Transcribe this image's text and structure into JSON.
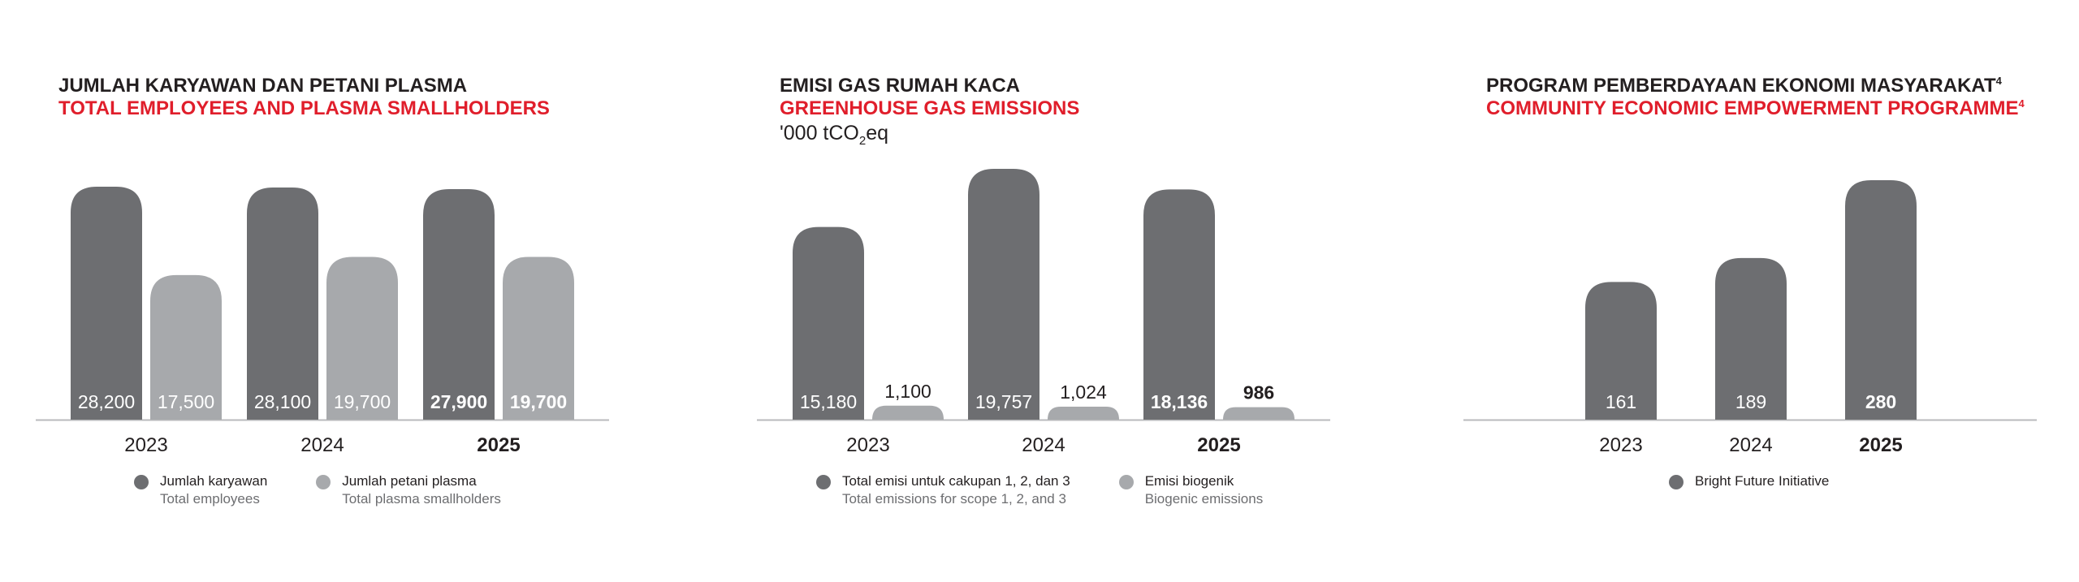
{
  "colors": {
    "primary": "#6d6e71",
    "secondary": "#a7a9ac",
    "accent": "#e01e2b",
    "text": "#231f20",
    "axis": "#b9babc"
  },
  "panels": [
    {
      "title_id": "JUMLAH KARYAWAN DAN PETANI PLASMA",
      "title_en": "TOTAL EMPLOYEES AND PLASMA SMALLHOLDERS",
      "unit": "",
      "legend": [
        {
          "main": "Jumlah karyawan",
          "sub": "Total employees"
        },
        {
          "main": "Jumlah petani plasma",
          "sub": "Total plasma smallholders"
        }
      ]
    },
    {
      "title_id": "EMISI GAS RUMAH KACA",
      "title_en": "GREENHOUSE GAS EMISSIONS",
      "unit_prefix": "'000 tCO",
      "unit_sub": "2",
      "unit_suffix": "eq",
      "legend": [
        {
          "main": "Total emisi untuk cakupan 1, 2, dan 3",
          "sub": "Total emissions for scope 1, 2, and 3"
        },
        {
          "main": "Emisi biogenik",
          "sub": "Biogenic emissions"
        }
      ]
    },
    {
      "title_id": "PROGRAM PEMBERDAYAAN EKONOMI MASYARAKAT",
      "title_id_sup": "4",
      "title_en": "COMMUNITY ECONOMIC EMPOWERMENT PROGRAMME",
      "title_en_sup": "4",
      "legend": [
        {
          "main": "Bright Future Initiative",
          "sub": ""
        }
      ]
    }
  ],
  "chart_data": [
    {
      "type": "bar",
      "categories": [
        "2023",
        "2024",
        "2025"
      ],
      "highlight_category": "2025",
      "series": [
        {
          "name": "Jumlah karyawan / Total employees",
          "values": [
            28200,
            28100,
            27900
          ],
          "labels": [
            "28,200",
            "28,100",
            "27,900"
          ]
        },
        {
          "name": "Jumlah petani plasma / Total plasma smallholders",
          "values": [
            17500,
            19700,
            19700
          ],
          "labels": [
            "17,500",
            "19,700",
            "19,700"
          ]
        }
      ]
    },
    {
      "type": "bar",
      "categories": [
        "2023",
        "2024",
        "2025"
      ],
      "highlight_category": "2025",
      "series": [
        {
          "name": "Total emisi untuk cakupan 1, 2, dan 3 / Total emissions for scope 1, 2, and 3",
          "values": [
            15180,
            19757,
            18136
          ],
          "labels": [
            "15,180",
            "19,757",
            "18,136"
          ]
        },
        {
          "name": "Emisi biogenik / Biogenic emissions",
          "values": [
            1100,
            1024,
            986
          ],
          "labels": [
            "1,100",
            "1,024",
            "986"
          ]
        }
      ]
    },
    {
      "type": "bar",
      "categories": [
        "2023",
        "2024",
        "2025"
      ],
      "highlight_category": "2025",
      "series": [
        {
          "name": "Bright Future Initiative",
          "values": [
            161,
            189,
            280
          ],
          "labels": [
            "161",
            "189",
            "280"
          ]
        }
      ]
    }
  ]
}
